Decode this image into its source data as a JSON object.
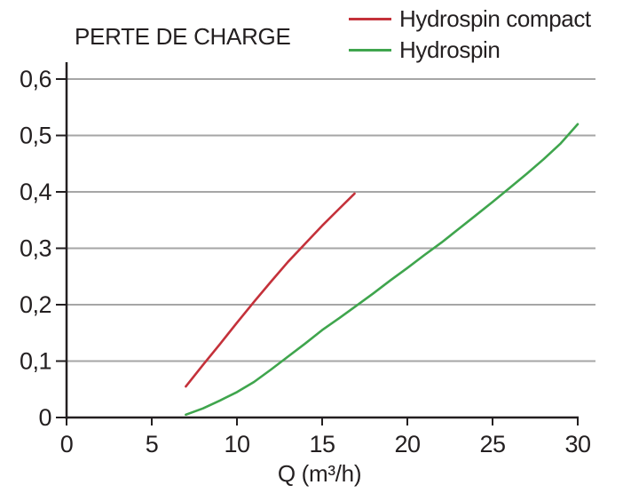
{
  "chart_data": {
    "type": "line",
    "title": "PERTE DE CHARGE",
    "xlabel": "Q (m³/h)",
    "ylabel": "",
    "xlim": [
      0,
      30
    ],
    "ylim": [
      0,
      0.6
    ],
    "grid": "horizontal",
    "legend_position": "top-right",
    "x_ticks": [
      {
        "label": "0",
        "value": 0
      },
      {
        "label": "5",
        "value": 5
      },
      {
        "label": "10",
        "value": 10
      },
      {
        "label": "15",
        "value": 15
      },
      {
        "label": "20",
        "value": 20
      },
      {
        "label": "25",
        "value": 25
      },
      {
        "label": "30",
        "value": 30
      }
    ],
    "y_ticks": [
      {
        "label": "0",
        "value": 0
      },
      {
        "label": "0,1",
        "value": 0.1
      },
      {
        "label": "0,2",
        "value": 0.2
      },
      {
        "label": "0,3",
        "value": 0.3
      },
      {
        "label": "0,4",
        "value": 0.4
      },
      {
        "label": "0,5",
        "value": 0.5
      },
      {
        "label": "0,6",
        "value": 0.6
      }
    ],
    "series": [
      {
        "name": "Hydrospin compact",
        "color": "#c4313a",
        "points": [
          [
            7,
            0.055
          ],
          [
            8,
            0.093
          ],
          [
            9,
            0.13
          ],
          [
            10,
            0.168
          ],
          [
            11,
            0.205
          ],
          [
            12,
            0.241
          ],
          [
            13,
            0.276
          ],
          [
            14,
            0.308
          ],
          [
            15,
            0.34
          ],
          [
            16,
            0.37
          ],
          [
            16.9,
            0.397
          ]
        ]
      },
      {
        "name": "Hydrospin",
        "color": "#3fa54d",
        "points": [
          [
            7,
            0.005
          ],
          [
            8,
            0.016
          ],
          [
            9,
            0.03
          ],
          [
            10,
            0.045
          ],
          [
            11,
            0.063
          ],
          [
            12,
            0.085
          ],
          [
            13,
            0.108
          ],
          [
            14,
            0.131
          ],
          [
            15,
            0.155
          ],
          [
            16,
            0.176
          ],
          [
            17,
            0.198
          ],
          [
            18,
            0.22
          ],
          [
            19,
            0.243
          ],
          [
            20,
            0.265
          ],
          [
            21,
            0.288
          ],
          [
            22,
            0.31
          ],
          [
            23,
            0.334
          ],
          [
            24,
            0.358
          ],
          [
            25,
            0.382
          ],
          [
            26,
            0.407
          ],
          [
            27,
            0.432
          ],
          [
            28,
            0.458
          ],
          [
            29,
            0.486
          ],
          [
            30,
            0.52
          ]
        ]
      }
    ]
  },
  "colors": {
    "axis": "#231f20",
    "grid": "#a6a6a6",
    "text": "#231f20",
    "background": "#ffffff"
  }
}
